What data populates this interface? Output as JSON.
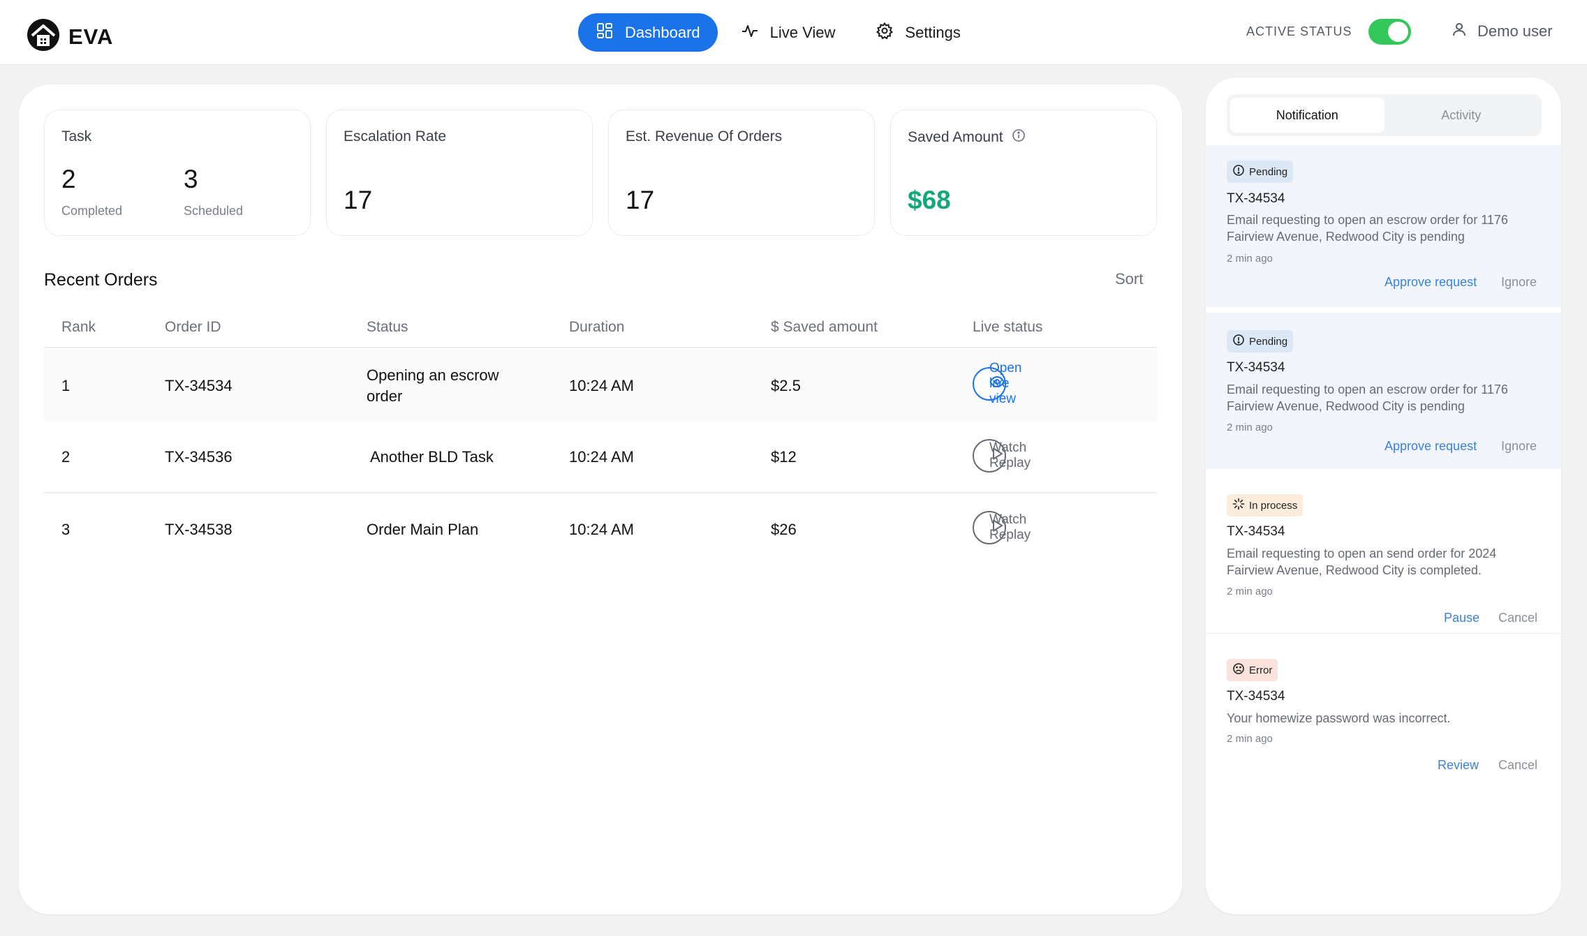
{
  "app": {
    "brand": "EVA"
  },
  "nav": [
    {
      "label": "Dashboard",
      "icon": "grid-icon",
      "active": true
    },
    {
      "label": "Live View",
      "icon": "pulse-icon",
      "active": false
    },
    {
      "label": "Settings",
      "icon": "gear-icon",
      "active": false
    }
  ],
  "header": {
    "status_label": "ACTIVE STATUS",
    "status_on": true,
    "user": "Demo user"
  },
  "cards": {
    "task": {
      "title": "Task",
      "completed_value": "2",
      "completed_label": "Completed",
      "scheduled_value": "3",
      "scheduled_label": "Scheduled"
    },
    "escalation": {
      "title": "Escalation Rate",
      "value": "17"
    },
    "revenue": {
      "title": "Est. Revenue Of Orders",
      "value": "17"
    },
    "saved": {
      "title": "Saved Amount",
      "value": "$68",
      "value_color": "#13a77a"
    }
  },
  "orders": {
    "title": "Recent Orders",
    "sort_label": "Sort",
    "columns": [
      "Rank",
      "Order ID",
      "Status",
      "Duration",
      "$ Saved amount",
      "Live status"
    ],
    "rows": [
      {
        "rank": "1",
        "order_id": "TX-34534",
        "status_line1": "Opening an escrow",
        "status_line2": "order",
        "duration": "10:24 AM",
        "saved": "$2.5",
        "action": "Open live view"
      },
      {
        "rank": "2",
        "order_id": "TX-34536",
        "status": "Another BLD Task",
        "duration": "10:24 AM",
        "saved": "$12",
        "action": "Watch Replay"
      },
      {
        "rank": "3",
        "order_id": "TX-34538",
        "status": "Order Main Plan",
        "duration": "10:24 AM",
        "saved": "$26",
        "action": "Watch Replay"
      }
    ]
  },
  "side": {
    "tabs": [
      "Notification",
      "Activity"
    ],
    "notifications": [
      {
        "badge": "Pending",
        "id": "TX-34534",
        "msg1": "Email requesting to open an escrow order for 1176",
        "msg2": "Fairview Avenue, Redwood City is pending",
        "time": "2 min ago",
        "primary": "Approve request",
        "secondary": "Ignore"
      },
      {
        "badge": "Pending",
        "id": "TX-34534",
        "msg1": "Email requesting to open an escrow order for 1176",
        "msg2": "Fairview Avenue, Redwood City is pending",
        "time": "2 min ago",
        "primary": "Approve request",
        "secondary": "Ignore"
      },
      {
        "badge": "In process",
        "id": "TX-34534",
        "msg1": "Email requesting to open an send order for 2024",
        "msg2": "Fairview Avenue, Redwood City is completed.",
        "time": "2 min ago",
        "primary": "Pause",
        "secondary": "Cancel"
      },
      {
        "badge": "Error",
        "id": "TX-34534",
        "msg1": "Your homewize password was incorrect.",
        "time": "2 min ago",
        "primary": "Review",
        "secondary": "Cancel"
      }
    ]
  },
  "colors": {
    "accent": "#1a73e8",
    "toggle_on": "#34c759",
    "saved_green": "#13a77a",
    "link_blue": "#3c82d4"
  }
}
